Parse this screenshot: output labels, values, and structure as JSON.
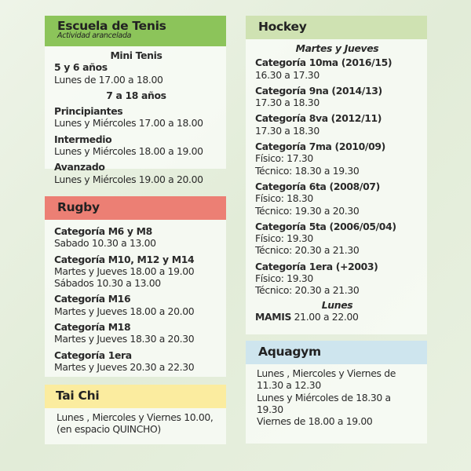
{
  "colors": {
    "tenis": "#8cc45a",
    "rugby": "#ec7f74",
    "taichi": "#fbec9f",
    "hockey": "#cfe2b2",
    "aquagym": "#cee5ee",
    "background": "#e6eedd"
  },
  "tenis": {
    "title": "Escuela de Tenis",
    "subtitle": "Actividad arancelada",
    "group1": "Mini Tenis",
    "g1_cat": "5 y 6 años",
    "g1_time": "Lunes de 17.00 a 18.00",
    "group2": "7 a 18 años",
    "levels": [
      {
        "name": "Principiantes",
        "time": "Lunes y Miércoles 17.00 a 18.00"
      },
      {
        "name": "Intermedio",
        "time": "Lunes y Miércoles 18.00 a 19.00"
      },
      {
        "name": "Avanzado",
        "time": "Lunes y Miércoles 19.00 a 20.00"
      }
    ]
  },
  "rugby": {
    "title": "Rugby",
    "items": [
      {
        "name": "Categoría M6 y M8",
        "lines": [
          "Sabado 10.30 a 13.00"
        ]
      },
      {
        "name": "Categoría M10, M12 y M14",
        "lines": [
          "Martes y Jueves 18.00 a 19.00",
          "Sábados 10.30 a 13.00"
        ]
      },
      {
        "name": "Categoría M16",
        "lines": [
          "Martes y Jueves 18.00 a 20.00"
        ]
      },
      {
        "name": "Categoría M18",
        "lines": [
          "Martes y Jueves 18.30 a 20.30"
        ]
      },
      {
        "name": "Categoría 1era",
        "lines": [
          "Martes y Jueves 20.30 a 22.30"
        ]
      }
    ]
  },
  "taichi": {
    "title": "Tai Chi",
    "lines": [
      "Lunes , Miercoles y Viernes  10.00,",
      "(en espacio QUINCHO)"
    ]
  },
  "hockey": {
    "title": "Hockey",
    "days": "Martes y Jueves",
    "items": [
      {
        "name": "Categoría 10ma (2016/15)",
        "lines": [
          "16.30 a 17.30"
        ]
      },
      {
        "name": "Categoría 9na (2014/13)",
        "lines": [
          "17.30 a 18.30"
        ]
      },
      {
        "name": "Categoría 8va (2012/11)",
        "lines": [
          "17.30 a 18.30"
        ]
      },
      {
        "name": "Categoría 7ma (2010/09)",
        "lines": [
          "Físico: 17.30",
          "Técnico: 18.30 a 19.30"
        ]
      },
      {
        "name": "Categoría 6ta (2008/07)",
        "lines": [
          "Físico: 18.30",
          "Técnico: 19.30 a 20.30"
        ]
      },
      {
        "name": "Categoría 5ta (2006/05/04)",
        "lines": [
          "Físico: 19.30",
          "Técnico: 20.30 a 21.30"
        ]
      },
      {
        "name": "Categoría 1era (+2003)",
        "lines": [
          "Físico: 19.30",
          "Técnico: 20.30 a 21.30"
        ]
      }
    ],
    "monday": "Lunes",
    "mamis_label": "MAMIS",
    "mamis_time": "21.00 a 22.00"
  },
  "aquagym": {
    "title": "Aquagym",
    "lines": [
      "Lunes , Miercoles y Viernes de",
      "11.30 a 12.30",
      "Lunes y  Miércoles de 18.30 a",
      "19.30",
      "Viernes de 18.00 a 19.00"
    ]
  }
}
